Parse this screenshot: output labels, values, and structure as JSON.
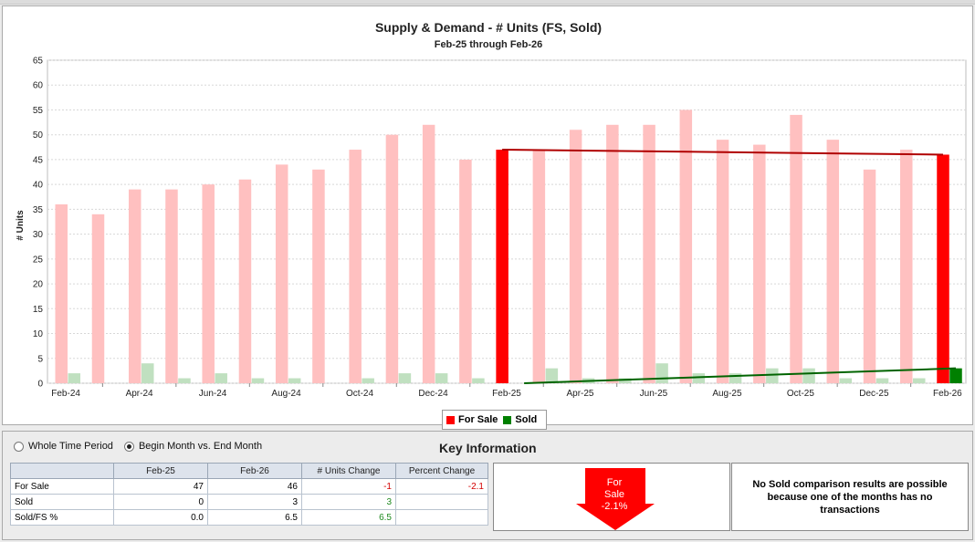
{
  "chart_data": {
    "type": "bar",
    "title": "Supply & Demand - # Units (FS, Sold)",
    "subtitle": "Feb-25 through Feb-26",
    "ylabel": "# Units",
    "xlabel": "",
    "ylim": [
      0,
      65
    ],
    "yticks": [
      0,
      5,
      10,
      15,
      20,
      25,
      30,
      35,
      40,
      45,
      50,
      55,
      60,
      65
    ],
    "grid": true,
    "legend_position": "bottom-center",
    "categories": [
      "Feb-24",
      "Mar-24",
      "Apr-24",
      "May-24",
      "Jun-24",
      "Jul-24",
      "Aug-24",
      "Sep-24",
      "Oct-24",
      "Nov-24",
      "Dec-24",
      "Jan-25",
      "Feb-25",
      "Mar-25",
      "Apr-25",
      "May-25",
      "Jun-25",
      "Jul-25",
      "Aug-25",
      "Sep-25",
      "Oct-25",
      "Nov-25",
      "Dec-25",
      "Jan-26",
      "Feb-26"
    ],
    "xtick_labels": [
      "Feb-24",
      "Apr-24",
      "Jun-24",
      "Aug-24",
      "Oct-24",
      "Dec-24",
      "Feb-25",
      "Apr-25",
      "Jun-25",
      "Aug-25",
      "Oct-25",
      "Dec-25",
      "Feb-26"
    ],
    "series": [
      {
        "name": "For Sale",
        "color": "#ff0000",
        "faded_color": "#ffc0c0",
        "values": [
          36,
          34,
          39,
          39,
          40,
          41,
          44,
          43,
          47,
          50,
          52,
          45,
          47,
          47,
          51,
          52,
          52,
          55,
          49,
          48,
          54,
          49,
          43,
          47,
          46
        ]
      },
      {
        "name": "Sold",
        "color": "#008000",
        "faded_color": "#c0e0c0",
        "values": [
          2,
          0,
          4,
          1,
          2,
          1,
          1,
          0,
          1,
          2,
          2,
          1,
          0,
          3,
          1,
          1,
          4,
          2,
          2,
          3,
          3,
          1,
          1,
          1,
          3
        ]
      }
    ],
    "highlight_categories": [
      "Feb-25",
      "Feb-26"
    ],
    "trend_lines": [
      {
        "series": "For Sale",
        "from": "Feb-25",
        "to": "Feb-26",
        "start": 47,
        "end": 46,
        "color": "#b00000"
      },
      {
        "series": "Sold",
        "from": "Feb-25",
        "to": "Feb-26",
        "start": 0,
        "end": 3,
        "color": "#006400"
      }
    ]
  },
  "legend": [
    {
      "label": "For Sale",
      "color": "#ff0000"
    },
    {
      "label": "Sold",
      "color": "#008000"
    }
  ],
  "options": {
    "whole_period_label": "Whole Time Period",
    "begin_end_label": "Begin Month vs. End Month",
    "selected": "begin_end"
  },
  "key_info": {
    "title": "Key Information",
    "columns": [
      "",
      "Feb-25",
      "Feb-26",
      "# Units Change",
      "Percent Change"
    ],
    "rows": [
      {
        "label": "For Sale",
        "begin": "47",
        "end": "46",
        "change": "-1",
        "pct": "-2.1"
      },
      {
        "label": "Sold",
        "begin": "0",
        "end": "3",
        "change": "3",
        "pct": ""
      },
      {
        "label": "Sold/FS %",
        "begin": "0.0",
        "end": "6.5",
        "change": "6.5",
        "pct": ""
      }
    ],
    "arrow_text_line1": "For",
    "arrow_text_line2": "Sale",
    "arrow_text_line3": "-2.1%",
    "arrow_color": "#ff0000",
    "message": "No Sold comparison results are possible because one of the months has no transactions"
  }
}
